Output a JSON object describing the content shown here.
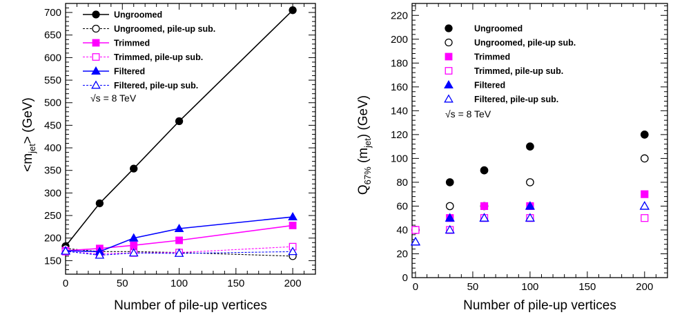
{
  "chart_data": [
    {
      "type": "line",
      "xlabel": "Number of pile-up vertices",
      "ylabel_main": "<m",
      "ylabel_sub": "jet",
      "ylabel_tail": "> (GeV)",
      "xlim": [
        0,
        220
      ],
      "ylim": [
        120,
        720
      ],
      "xticks": [
        0,
        50,
        100,
        150,
        200
      ],
      "yticks": [
        150,
        200,
        250,
        300,
        350,
        400,
        450,
        500,
        550,
        600,
        650,
        700
      ],
      "annotation": "√s = 8 TeV",
      "series": [
        {
          "name": "Ungroomed",
          "color": "#000000",
          "marker": "circle",
          "filled": true,
          "dashed": false,
          "x": [
            0,
            30,
            60,
            100,
            200
          ],
          "y": [
            182,
            277,
            354,
            459,
            705
          ]
        },
        {
          "name": "Ungroomed, pile-up sub.",
          "color": "#000000",
          "marker": "circle",
          "filled": false,
          "dashed": true,
          "x": [
            0,
            30,
            60,
            100,
            200
          ],
          "y": [
            177,
            170,
            170,
            168,
            160
          ]
        },
        {
          "name": "Trimmed",
          "color": "#ff00ff",
          "marker": "square",
          "filled": true,
          "dashed": false,
          "x": [
            0,
            30,
            60,
            100,
            200
          ],
          "y": [
            172,
            177,
            184,
            195,
            228
          ]
        },
        {
          "name": "Trimmed, pile-up sub.",
          "color": "#ff00ff",
          "marker": "square",
          "filled": false,
          "dashed": true,
          "x": [
            0,
            30,
            60,
            100,
            200
          ],
          "y": [
            170,
            165,
            167,
            168,
            181
          ]
        },
        {
          "name": "Filtered",
          "color": "#0000ff",
          "marker": "triangle",
          "filled": true,
          "dashed": false,
          "x": [
            0,
            30,
            60,
            100,
            200
          ],
          "y": [
            172,
            170,
            200,
            221,
            247
          ]
        },
        {
          "name": "Filtered, pile-up sub.",
          "color": "#0000ff",
          "marker": "triangle",
          "filled": false,
          "dashed": true,
          "x": [
            0,
            30,
            60,
            100,
            200
          ],
          "y": [
            171,
            162,
            167,
            166,
            170
          ]
        }
      ]
    },
    {
      "type": "scatter",
      "xlabel": "Number of pile-up vertices",
      "ylabel_main": "Q",
      "ylabel_sub1": "67%",
      "ylabel_mid": " (m",
      "ylabel_sub2": "jet",
      "ylabel_tail": ") (GeV)",
      "xlim": [
        -3,
        220
      ],
      "ylim": [
        0,
        230
      ],
      "xticks": [
        0,
        50,
        100,
        150,
        200
      ],
      "yticks": [
        0,
        20,
        40,
        60,
        80,
        100,
        120,
        140,
        160,
        180,
        200,
        220
      ],
      "annotation": "√s = 8 TeV",
      "series": [
        {
          "name": "Ungroomed",
          "color": "#000000",
          "marker": "circle",
          "filled": true,
          "x": [
            0,
            30,
            60,
            100,
            200
          ],
          "y": [
            40,
            80,
            90,
            110,
            120
          ]
        },
        {
          "name": "Ungroomed, pile-up sub.",
          "color": "#000000",
          "marker": "circle",
          "filled": false,
          "x": [
            0,
            30,
            60,
            100,
            200
          ],
          "y": [
            40,
            60,
            60,
            80,
            100
          ]
        },
        {
          "name": "Trimmed",
          "color": "#ff00ff",
          "marker": "square",
          "filled": true,
          "x": [
            0,
            30,
            60,
            100,
            200
          ],
          "y": [
            40,
            50,
            60,
            60,
            70
          ]
        },
        {
          "name": "Trimmed, pile-up sub.",
          "color": "#ff00ff",
          "marker": "square",
          "filled": false,
          "x": [
            0,
            30,
            60,
            100,
            200
          ],
          "y": [
            40,
            40,
            50,
            50,
            50
          ]
        },
        {
          "name": "Filtered",
          "color": "#0000ff",
          "marker": "triangle",
          "filled": true,
          "x": [
            0,
            30,
            60,
            100,
            200
          ],
          "y": [
            30,
            50,
            50,
            60,
            60
          ]
        },
        {
          "name": "Filtered, pile-up sub.",
          "color": "#0000ff",
          "marker": "triangle",
          "filled": false,
          "x": [
            0,
            30,
            60,
            100,
            200
          ],
          "y": [
            30,
            40,
            50,
            50,
            60
          ]
        }
      ]
    }
  ]
}
